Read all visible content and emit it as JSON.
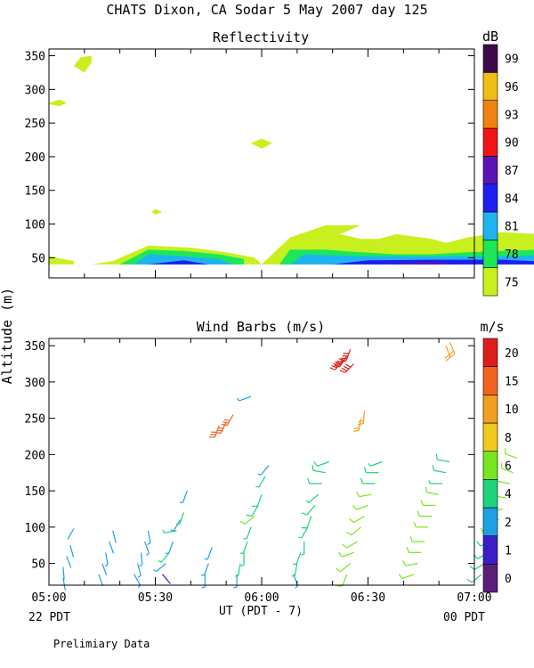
{
  "header": {
    "title": "CHATS Dixon, CA  Sodar    5 May 2007  day 125",
    "footer_note": "Prelimiary Data"
  },
  "y_axis_label": "Altitude (m)",
  "x_axis": {
    "label": "UT  (PDT - 7)",
    "ticks": [
      "05:00",
      "05:30",
      "06:00",
      "06:30",
      "07:00"
    ],
    "left_date": "22 PDT",
    "right_date": "00 PDT"
  },
  "colors": {
    "refl": [
      "#c8f01e",
      "#1ee65a",
      "#1eb4f0",
      "#1e1ef0",
      "#5a14b4",
      "#f01414",
      "#f08214",
      "#f0be14",
      "#3c0a46"
    ],
    "wind": [
      "#5a1e78",
      "#3c1ec8",
      "#1ea0e6",
      "#1ed27d",
      "#78e61e",
      "#f0c81e",
      "#f0a01e",
      "#f0641e",
      "#dc1e1e"
    ]
  },
  "chart_data": [
    {
      "type": "heatmap",
      "title": "Reflectivity",
      "ylim": [
        20,
        360
      ],
      "yticks": [
        50,
        100,
        150,
        200,
        250,
        300,
        350
      ],
      "xlim": [
        "05:00",
        "07:00"
      ],
      "colorbar": {
        "unit": "dB",
        "labels": [
          "75",
          "78",
          "81",
          "84",
          "87",
          "90",
          "93",
          "96",
          "99"
        ]
      },
      "layers": [
        {
          "level": 75,
          "regions": [
            [
              [
                0,
                52
              ],
              [
                7,
                45
              ],
              [
                7,
                40
              ],
              [
                0,
                40
              ]
            ],
            [
              [
                12,
                40
              ],
              [
                18,
                45
              ],
              [
                28,
                68
              ],
              [
                40,
                65
              ],
              [
                50,
                58
              ],
              [
                58,
                50
              ],
              [
                60,
                40
              ]
            ],
            [
              [
                60,
                40
              ],
              [
                68,
                80
              ],
              [
                78,
                98
              ],
              [
                88,
                98
              ],
              [
                82,
                85
              ],
              [
                88,
                78
              ],
              [
                93,
                78
              ],
              [
                98,
                85
              ],
              [
                108,
                78
              ],
              [
                112,
                72
              ],
              [
                118,
                80
              ],
              [
                128,
                88
              ],
              [
                138,
                85
              ],
              [
                148,
                82
              ],
              [
                148,
                40
              ]
            ],
            [
              [
                0,
                280
              ],
              [
                3,
                285
              ],
              [
                5,
                280
              ],
              [
                3,
                275
              ],
              [
                0,
                278
              ]
            ],
            [
              [
                7,
                335
              ],
              [
                9,
                348
              ],
              [
                12,
                350
              ],
              [
                12,
                340
              ],
              [
                10,
                325
              ],
              [
                7,
                335
              ]
            ],
            [
              [
                57,
                220
              ],
              [
                60,
                227
              ],
              [
                63,
                220
              ],
              [
                60,
                212
              ],
              [
                57,
                220
              ]
            ],
            [
              [
                29,
                118
              ],
              [
                30,
                122
              ],
              [
                32,
                118
              ],
              [
                30,
                114
              ],
              [
                29,
                118
              ]
            ]
          ]
        },
        {
          "level": 78,
          "regions": [
            [
              [
                20,
                40
              ],
              [
                28,
                62
              ],
              [
                38,
                60
              ],
              [
                48,
                55
              ],
              [
                55,
                48
              ],
              [
                55,
                40
              ]
            ],
            [
              [
                65,
                40
              ],
              [
                68,
                62
              ],
              [
                78,
                62
              ],
              [
                88,
                58
              ],
              [
                98,
                55
              ],
              [
                108,
                55
              ],
              [
                118,
                58
              ],
              [
                128,
                60
              ],
              [
                138,
                62
              ],
              [
                148,
                65
              ],
              [
                148,
                40
              ]
            ]
          ]
        },
        {
          "level": 81,
          "regions": [
            [
              [
                24,
                40
              ],
              [
                28,
                55
              ],
              [
                38,
                52
              ],
              [
                48,
                48
              ],
              [
                52,
                40
              ]
            ],
            [
              [
                68,
                40
              ],
              [
                72,
                55
              ],
              [
                88,
                52
              ],
              [
                108,
                52
              ],
              [
                128,
                52
              ],
              [
                148,
                55
              ],
              [
                148,
                40
              ]
            ]
          ]
        },
        {
          "level": 84,
          "regions": [
            [
              [
                28,
                40
              ],
              [
                38,
                46
              ],
              [
                45,
                40
              ]
            ],
            [
              [
                80,
                40
              ],
              [
                90,
                46
              ],
              [
                108,
                47
              ],
              [
                128,
                47
              ],
              [
                148,
                42
              ],
              [
                148,
                40
              ]
            ]
          ]
        },
        {
          "level": 87,
          "regions": [
            [
              [
                95,
                40
              ],
              [
                108,
                44
              ],
              [
                115,
                40
              ]
            ]
          ]
        }
      ]
    },
    {
      "type": "scatter",
      "title": "Wind Barbs (m/s)",
      "ylim": [
        20,
        360
      ],
      "yticks": [
        50,
        100,
        150,
        200,
        250,
        300,
        350
      ],
      "xlim": [
        "05:00",
        "07:00"
      ],
      "colorbar": {
        "unit": "m/s",
        "labels": [
          "0",
          "1",
          "2",
          "4",
          "6",
          "8",
          "10",
          "15",
          "20"
        ]
      },
      "barb_fields": [
        "minutes_after_0500",
        "altitude_m",
        "direction_deg",
        "speed_m_s"
      ],
      "barbs": [
        [
          4,
          30,
          170,
          2
        ],
        [
          4,
          45,
          175,
          2
        ],
        [
          5,
          60,
          160,
          2
        ],
        [
          6,
          75,
          165,
          2
        ],
        [
          7,
          98,
          210,
          2
        ],
        [
          14,
          35,
          160,
          2
        ],
        [
          15,
          50,
          160,
          2
        ],
        [
          16,
          65,
          170,
          3
        ],
        [
          17,
          80,
          160,
          2
        ],
        [
          18,
          95,
          165,
          2
        ],
        [
          24,
          35,
          150,
          3
        ],
        [
          25,
          50,
          165,
          3
        ],
        [
          26,
          65,
          175,
          3
        ],
        [
          27,
          80,
          160,
          3
        ],
        [
          28,
          95,
          170,
          3
        ],
        [
          32,
          35,
          140,
          1
        ],
        [
          33,
          50,
          230,
          3
        ],
        [
          34,
          65,
          220,
          4
        ],
        [
          35,
          80,
          200,
          3
        ],
        [
          36,
          95,
          260,
          4
        ],
        [
          37,
          110,
          210,
          3
        ],
        [
          38,
          120,
          200,
          4
        ],
        [
          39,
          150,
          200,
          3
        ],
        [
          44,
          35,
          180,
          3
        ],
        [
          45,
          50,
          200,
          3
        ],
        [
          46,
          72,
          200,
          3
        ],
        [
          53,
          35,
          180,
          3
        ],
        [
          54,
          50,
          190,
          4
        ],
        [
          55,
          65,
          180,
          4
        ],
        [
          56,
          80,
          200,
          4
        ],
        [
          57,
          100,
          200,
          4
        ],
        [
          58,
          115,
          230,
          6
        ],
        [
          59,
          130,
          210,
          5
        ],
        [
          60,
          145,
          200,
          5
        ],
        [
          61,
          170,
          210,
          4
        ],
        [
          62,
          185,
          220,
          3
        ],
        [
          69,
          35,
          160,
          3
        ],
        [
          70,
          50,
          190,
          4
        ],
        [
          71,
          65,
          200,
          4
        ],
        [
          72,
          80,
          180,
          4
        ],
        [
          73,
          100,
          210,
          4
        ],
        [
          74,
          115,
          200,
          5
        ],
        [
          75,
          130,
          220,
          5
        ],
        [
          76,
          145,
          230,
          4
        ],
        [
          77,
          160,
          270,
          5
        ],
        [
          78,
          175,
          280,
          5
        ],
        [
          79,
          190,
          250,
          5
        ],
        [
          84,
          35,
          200,
          6
        ],
        [
          85,
          50,
          230,
          6
        ],
        [
          86,
          65,
          250,
          6
        ],
        [
          87,
          80,
          240,
          6
        ],
        [
          88,
          100,
          230,
          6
        ],
        [
          89,
          115,
          240,
          6
        ],
        [
          90,
          130,
          250,
          6
        ],
        [
          91,
          145,
          260,
          6
        ],
        [
          92,
          160,
          270,
          5
        ],
        [
          93,
          175,
          270,
          5
        ],
        [
          94,
          190,
          250,
          4
        ],
        [
          103,
          35,
          250,
          6
        ],
        [
          104,
          50,
          260,
          6
        ],
        [
          105,
          65,
          270,
          6
        ],
        [
          106,
          80,
          270,
          6
        ],
        [
          107,
          100,
          270,
          6
        ],
        [
          108,
          115,
          270,
          6
        ],
        [
          109,
          130,
          270,
          6
        ],
        [
          110,
          145,
          280,
          6
        ],
        [
          111,
          160,
          270,
          4
        ],
        [
          112,
          175,
          280,
          5
        ],
        [
          113,
          190,
          280,
          5
        ],
        [
          122,
          35,
          230,
          5
        ],
        [
          123,
          50,
          240,
          5
        ],
        [
          124,
          65,
          240,
          5
        ],
        [
          125,
          80,
          250,
          5
        ],
        [
          126,
          95,
          260,
          6
        ],
        [
          127,
          110,
          270,
          6
        ],
        [
          128,
          125,
          260,
          6
        ],
        [
          129,
          140,
          280,
          6
        ],
        [
          130,
          160,
          280,
          6
        ],
        [
          131,
          175,
          290,
          6
        ],
        [
          132,
          195,
          290,
          6
        ],
        [
          142,
          35,
          240,
          6
        ],
        [
          143,
          50,
          240,
          6
        ],
        [
          144,
          65,
          250,
          6
        ],
        [
          145,
          80,
          270,
          6
        ],
        [
          146,
          95,
          280,
          5
        ],
        [
          147,
          115,
          280,
          6
        ],
        [
          148,
          130,
          270,
          5
        ],
        [
          149,
          140,
          280,
          3
        ],
        [
          150,
          160,
          290,
          4
        ],
        [
          151,
          180,
          300,
          5
        ],
        [
          152,
          200,
          280,
          6
        ],
        [
          48,
          240,
          200,
          15
        ],
        [
          50,
          245,
          205,
          15
        ],
        [
          52,
          255,
          210,
          15
        ],
        [
          57,
          280,
          250,
          3
        ],
        [
          83,
          330,
          220,
          20
        ],
        [
          84,
          335,
          215,
          20
        ],
        [
          85,
          345,
          200,
          20
        ],
        [
          86,
          325,
          225,
          20
        ],
        [
          88,
          250,
          190,
          10
        ],
        [
          89,
          260,
          185,
          10
        ],
        [
          112,
          350,
          160,
          10
        ],
        [
          113,
          355,
          155,
          10
        ]
      ]
    }
  ]
}
